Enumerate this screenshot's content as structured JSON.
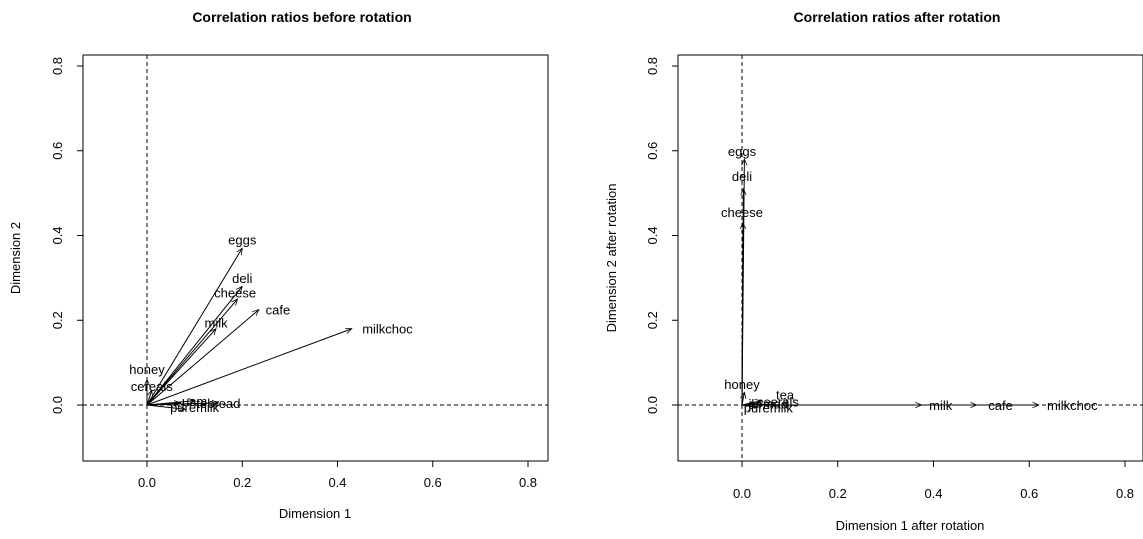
{
  "chart_data": [
    {
      "type": "arrow-biplot",
      "title": "Correlation ratios before rotation",
      "xlabel": "Dimension 1",
      "ylabel": "Dimension 2",
      "xlim": [
        -0.14,
        0.82
      ],
      "ylim": [
        -0.14,
        0.84
      ],
      "xticks": [
        "0.0",
        "0.2",
        "0.4",
        "0.6",
        "0.8"
      ],
      "yticks": [
        "0.0",
        "0.2",
        "0.4",
        "0.6",
        "0.8"
      ],
      "reference_lines": "dashed at x=0 and y=0",
      "grid": false,
      "points": [
        {
          "label": "eggs",
          "x": 0.2,
          "y": 0.37
        },
        {
          "label": "deli",
          "x": 0.2,
          "y": 0.28
        },
        {
          "label": "cheese",
          "x": 0.19,
          "y": 0.25
        },
        {
          "label": "cafe",
          "x": 0.235,
          "y": 0.225
        },
        {
          "label": "milk",
          "x": 0.145,
          "y": 0.18
        },
        {
          "label": "milkchoc",
          "x": 0.43,
          "y": 0.18
        },
        {
          "label": "honey",
          "x": 0.0,
          "y": 0.06
        },
        {
          "label": "cereals",
          "x": 0.01,
          "y": 0.035
        },
        {
          "label": "jam",
          "x": 0.1,
          "y": 0.01
        },
        {
          "label": "tea",
          "x": 0.07,
          "y": 0.005
        },
        {
          "label": "bread",
          "x": 0.15,
          "y": 0.005
        },
        {
          "label": "puremilk",
          "x": 0.08,
          "y": -0.01
        }
      ],
      "printed_labels": [
        {
          "text": "eggs",
          "x": 0.2,
          "y": 0.39
        },
        {
          "text": "deli",
          "x": 0.2,
          "y": 0.3
        },
        {
          "text": "cheese",
          "x": 0.185,
          "y": 0.265
        },
        {
          "text": "cafe",
          "x": 0.275,
          "y": 0.225
        },
        {
          "text": "milk",
          "x": 0.145,
          "y": 0.195
        },
        {
          "text": "milkchoc",
          "x": 0.505,
          "y": 0.18
        },
        {
          "text": "honey",
          "x": 0.0,
          "y": 0.085
        },
        {
          "text": "cereals",
          "x": 0.01,
          "y": 0.045
        },
        {
          "text": "uam",
          "x": 0.1,
          "y": 0.01
        },
        {
          "text": "tebread",
          "x": 0.15,
          "y": 0.005
        },
        {
          "text": "puremilk",
          "x": 0.1,
          "y": -0.005
        }
      ]
    },
    {
      "type": "arrow-biplot",
      "title": "Correlation ratios after rotation",
      "xlabel": "Dimension 1 after rotation",
      "ylabel": "Dimension 2 after rotation",
      "xlim": [
        -0.14,
        0.82
      ],
      "ylim": [
        -0.14,
        0.84
      ],
      "xticks": [
        "0.0",
        "0.2",
        "0.4",
        "0.6",
        "0.8"
      ],
      "yticks": [
        "0.0",
        "0.2",
        "0.4",
        "0.6",
        "0.8"
      ],
      "reference_lines": "dashed at x=0 and y=0",
      "grid": false,
      "points": [
        {
          "label": "eggs",
          "x": 0.005,
          "y": 0.58
        },
        {
          "label": "deli",
          "x": 0.003,
          "y": 0.51
        },
        {
          "label": "cheese",
          "x": 0.002,
          "y": 0.43
        },
        {
          "label": "milk",
          "x": 0.375,
          "y": 0.0
        },
        {
          "label": "cafe",
          "x": 0.49,
          "y": 0.0
        },
        {
          "label": "milkchoc",
          "x": 0.62,
          "y": 0.0
        },
        {
          "label": "honey",
          "x": 0.005,
          "y": 0.03
        },
        {
          "label": "tea",
          "x": 0.04,
          "y": 0.01
        },
        {
          "label": "cereals",
          "x": 0.07,
          "y": 0.002
        },
        {
          "label": "jam",
          "x": 0.03,
          "y": 0.003
        },
        {
          "label": "bread",
          "x": 0.045,
          "y": 0.001
        },
        {
          "label": "puremilk",
          "x": 0.03,
          "y": -0.005
        }
      ],
      "printed_labels": [
        {
          "text": "eggs",
          "x": 0.0,
          "y": 0.6
        },
        {
          "text": "deli",
          "x": 0.0,
          "y": 0.54
        },
        {
          "text": "cheese",
          "x": 0.0,
          "y": 0.455
        },
        {
          "text": "honey",
          "x": 0.0,
          "y": 0.05
        },
        {
          "text": "tea",
          "x": 0.09,
          "y": 0.025
        },
        {
          "text": "ceerals",
          "x": 0.075,
          "y": 0.008
        },
        {
          "text": "jbrmad",
          "x": 0.055,
          "y": 0.003
        },
        {
          "text": "puremilk",
          "x": 0.055,
          "y": -0.006
        },
        {
          "text": "milk",
          "x": 0.415,
          "y": 0.0
        },
        {
          "text": "cafe",
          "x": 0.54,
          "y": 0.0
        },
        {
          "text": "milkchoc",
          "x": 0.69,
          "y": 0.0
        }
      ]
    }
  ]
}
